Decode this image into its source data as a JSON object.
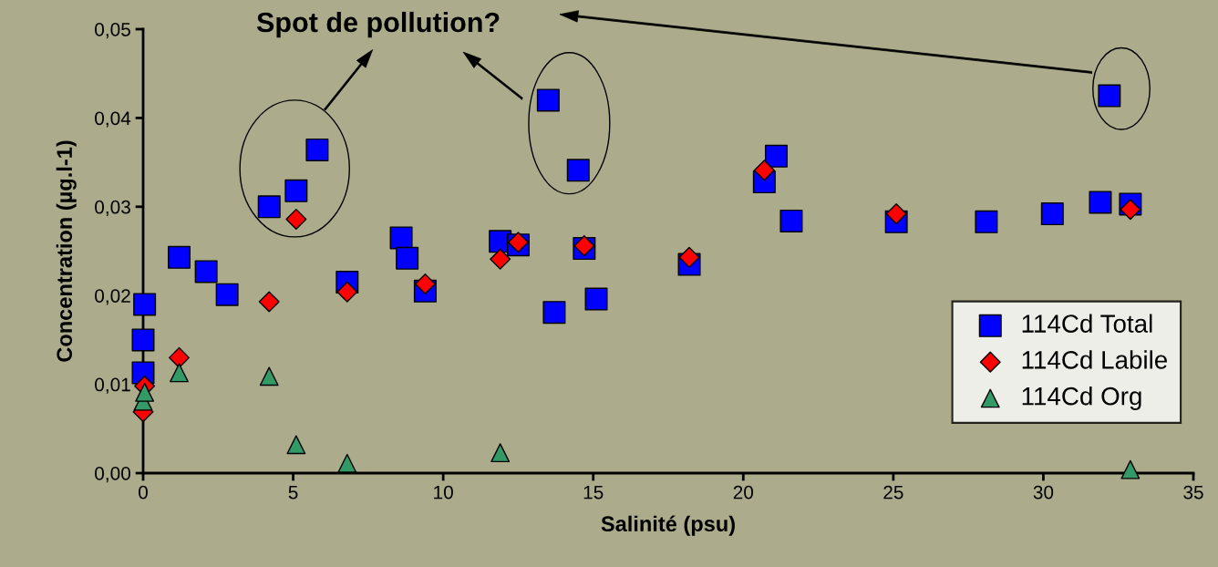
{
  "chart_data": {
    "type": "scatter",
    "xlabel": "Salinité (psu)",
    "ylabel": "Concentration (µg.l-1)",
    "annotations": [
      "Spot de pollution?"
    ],
    "xlim": [
      0,
      35
    ],
    "ylim": [
      0,
      0.05
    ],
    "xticks": [
      0,
      5,
      10,
      15,
      20,
      25,
      30,
      35
    ],
    "yticks": [
      {
        "value": 0,
        "label": "0,00"
      },
      {
        "value": 0.01,
        "label": "0,01"
      },
      {
        "value": 0.02,
        "label": "0,02"
      },
      {
        "value": 0.03,
        "label": "0,03"
      },
      {
        "value": 0.04,
        "label": "0,04"
      },
      {
        "value": 0.05,
        "label": "0,05"
      }
    ],
    "grid": false,
    "legend": "right",
    "series": [
      {
        "name": "114Cd Total",
        "color": "#0000ff",
        "marker": "square",
        "x": [
          0,
          0,
          0.05,
          1.2,
          2.1,
          2.8,
          4.2,
          5.1,
          5.8,
          6.8,
          8.6,
          8.8,
          9.4,
          11.9,
          12.5,
          13.5,
          13.7,
          14.5,
          14.7,
          15.1,
          18.2,
          20.7,
          21.1,
          21.6,
          25.1,
          28.1,
          30.3,
          31.9,
          32.2,
          32.9
        ],
        "values": [
          0.0113,
          0.015,
          0.019,
          0.0243,
          0.0227,
          0.0201,
          0.03,
          0.0318,
          0.0364,
          0.0215,
          0.0265,
          0.0242,
          0.0205,
          0.0261,
          0.0257,
          0.042,
          0.0181,
          0.0341,
          0.0253,
          0.0196,
          0.0235,
          0.0328,
          0.0357,
          0.0284,
          0.0283,
          0.0283,
          0.0292,
          0.0305,
          0.0425,
          0.0303
        ]
      },
      {
        "name": "114Cd Labile",
        "color": "#ff0000",
        "marker": "diamond",
        "x": [
          0,
          0.05,
          1.2,
          4.2,
          5.1,
          6.8,
          9.4,
          11.9,
          12.5,
          14.7,
          18.2,
          20.7,
          25.1,
          32.9
        ],
        "values": [
          0.0069,
          0.0098,
          0.013,
          0.0193,
          0.0286,
          0.0204,
          0.0213,
          0.0241,
          0.026,
          0.0256,
          0.0243,
          0.0341,
          0.0292,
          0.0297
        ]
      },
      {
        "name": "114Cd Org",
        "color": "#339966",
        "marker": "triangle",
        "x": [
          0,
          0.05,
          1.2,
          4.2,
          5.1,
          6.8,
          11.9,
          32.9
        ],
        "values": [
          0.0081,
          0.0091,
          0.0113,
          0.0109,
          0.0032,
          0.0011,
          0.0023,
          0.0004
        ]
      }
    ]
  }
}
